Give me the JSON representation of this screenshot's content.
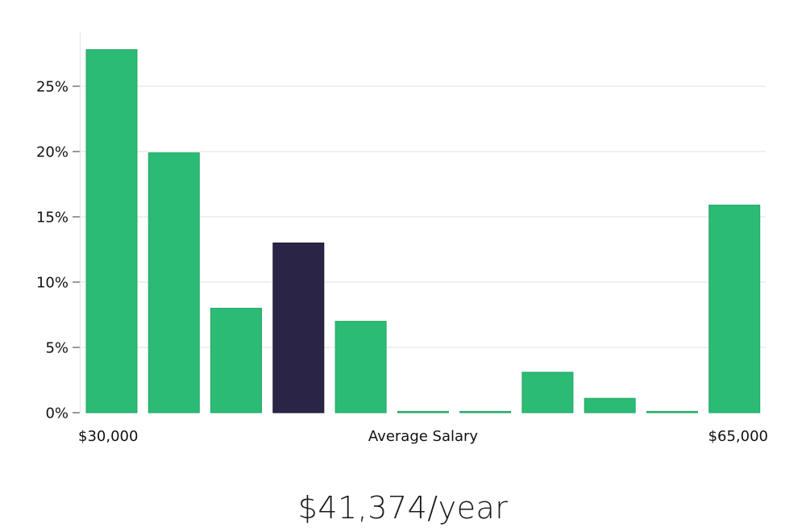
{
  "chart_data": {
    "type": "bar",
    "xlabel": "Average Salary",
    "x_min_label": "$30,000",
    "x_max_label": "$65,000",
    "ylabel": "",
    "ylim": [
      0,
      29
    ],
    "yticks": [
      0,
      5,
      10,
      15,
      20,
      25
    ],
    "ytick_labels": [
      "0%",
      "5%",
      "10%",
      "15%",
      "20%",
      "25%"
    ],
    "values": [
      27.8,
      19.9,
      8.0,
      13.0,
      7.0,
      0.1,
      0.1,
      3.1,
      1.1,
      0.1,
      15.9
    ],
    "highlight_index": 3,
    "colors": {
      "bar": "#2bbb74",
      "highlight": "#2a2547"
    },
    "grid": true
  },
  "summary": {
    "salary": "$41,374/year"
  }
}
